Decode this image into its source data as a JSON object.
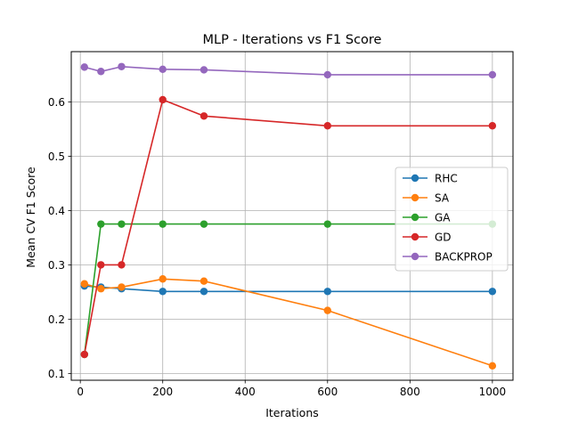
{
  "chart_data": {
    "type": "line",
    "title": "MLP - Iterations vs F1 Score",
    "xlabel": "Iterations",
    "ylabel": "Mean CV F1 Score",
    "xlim": [
      -22,
      1050
    ],
    "ylim": [
      0.0875,
      0.6925
    ],
    "xticks": [
      0,
      200,
      400,
      600,
      800,
      1000
    ],
    "xtick_labels": [
      "0",
      "200",
      "400",
      "600",
      "800",
      "1000"
    ],
    "yticks": [
      0.1,
      0.2,
      0.3,
      0.4,
      0.5,
      0.6
    ],
    "ytick_labels": [
      "0.1",
      "0.2",
      "0.3",
      "0.4",
      "0.5",
      "0.6"
    ],
    "grid": true,
    "legend_position": "center-right",
    "x": [
      10,
      50,
      100,
      200,
      300,
      600,
      1000
    ],
    "series": [
      {
        "name": "RHC",
        "color": "#1f77b4",
        "values": [
          0.261,
          0.259,
          0.256,
          0.251,
          0.251,
          0.251,
          0.251
        ]
      },
      {
        "name": "SA",
        "color": "#ff7f0e",
        "values": [
          0.265,
          0.256,
          0.259,
          0.274,
          0.27,
          0.216,
          0.114
        ]
      },
      {
        "name": "GA",
        "color": "#2ca02c",
        "values": [
          0.135,
          0.375,
          0.375,
          0.375,
          0.375,
          0.375,
          0.375
        ]
      },
      {
        "name": "GD",
        "color": "#d62728",
        "values": [
          0.135,
          0.3,
          0.3,
          0.604,
          0.574,
          0.556,
          0.556
        ]
      },
      {
        "name": "BACKPROP",
        "color": "#9467bd",
        "values": [
          0.664,
          0.656,
          0.665,
          0.66,
          0.659,
          0.65,
          0.65
        ]
      }
    ]
  }
}
